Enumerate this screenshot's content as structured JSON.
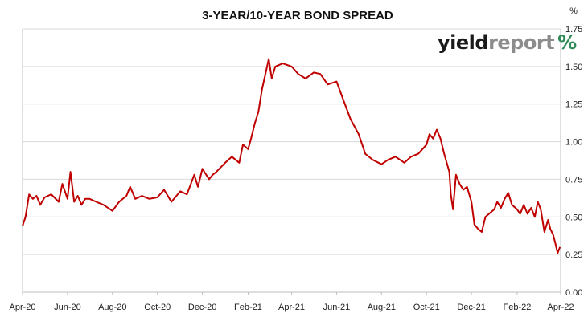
{
  "chart_data": {
    "type": "line",
    "title": "3-YEAR/10-YEAR BOND SPREAD",
    "y_unit": "%",
    "ylim": [
      0,
      1.75
    ],
    "y_ticks": [
      "0.00",
      "0.25",
      "0.50",
      "0.75",
      "1.00",
      "1.25",
      "1.50",
      "1.75"
    ],
    "x_ticks": [
      "Apr-20",
      "Jun-20",
      "Aug-20",
      "Oct-20",
      "Dec-20",
      "Feb-21",
      "Apr-21",
      "Jun-21",
      "Aug-21",
      "Oct-21",
      "Dec-21",
      "Feb-22",
      "Apr-22"
    ],
    "grid": "horizontal",
    "legend": "none",
    "colors": {
      "line": "#c00000"
    },
    "logo": {
      "part1": "yield",
      "part2": "report",
      "part3": "%",
      "color1": "#1a1a1a",
      "color2": "#8c8c8c",
      "color3": "#2e8b57"
    },
    "series": [
      {
        "x": [
          "2020-04-01",
          "2020-04-05",
          "2020-04-10",
          "2020-04-15",
          "2020-04-20",
          "2020-04-25",
          "2020-05-01",
          "2020-05-10",
          "2020-05-20",
          "2020-05-25",
          "2020-06-01",
          "2020-06-05",
          "2020-06-10",
          "2020-06-15",
          "2020-06-20",
          "2020-06-25",
          "2020-07-01",
          "2020-07-10",
          "2020-07-20",
          "2020-08-01",
          "2020-08-10",
          "2020-08-20",
          "2020-08-25",
          "2020-09-01",
          "2020-09-10",
          "2020-09-20",
          "2020-10-01",
          "2020-10-10",
          "2020-10-20",
          "2020-11-01",
          "2020-11-10",
          "2020-11-20",
          "2020-11-25",
          "2020-12-01",
          "2020-12-10",
          "2020-12-15",
          "2020-12-20",
          "2021-01-01",
          "2021-01-10",
          "2021-01-20",
          "2021-01-25",
          "2021-02-01",
          "2021-02-05",
          "2021-02-10",
          "2021-02-15",
          "2021-02-20",
          "2021-02-25",
          "2021-03-01",
          "2021-03-05",
          "2021-03-10",
          "2021-03-20",
          "2021-04-01",
          "2021-04-10",
          "2021-04-20",
          "2021-05-01",
          "2021-05-10",
          "2021-05-20",
          "2021-06-01",
          "2021-06-10",
          "2021-06-20",
          "2021-07-01",
          "2021-07-10",
          "2021-07-20",
          "2021-08-01",
          "2021-08-10",
          "2021-08-20",
          "2021-09-01",
          "2021-09-10",
          "2021-09-20",
          "2021-10-01",
          "2021-10-05",
          "2021-10-10",
          "2021-10-15",
          "2021-10-20",
          "2021-10-25",
          "2021-11-01",
          "2021-11-03",
          "2021-11-06",
          "2021-11-10",
          "2021-11-15",
          "2021-11-20",
          "2021-11-25",
          "2021-12-01",
          "2021-12-05",
          "2021-12-10",
          "2021-12-15",
          "2021-12-20",
          "2022-01-01",
          "2022-01-05",
          "2022-01-10",
          "2022-01-15",
          "2022-01-20",
          "2022-01-25",
          "2022-02-01",
          "2022-02-05",
          "2022-02-10",
          "2022-02-15",
          "2022-02-20",
          "2022-02-25",
          "2022-03-01",
          "2022-03-05",
          "2022-03-10",
          "2022-03-15",
          "2022-03-18",
          "2022-03-22",
          "2022-03-25",
          "2022-03-28",
          "2022-03-31"
        ],
        "y": [
          0.44,
          0.5,
          0.65,
          0.62,
          0.64,
          0.58,
          0.63,
          0.65,
          0.6,
          0.72,
          0.62,
          0.8,
          0.6,
          0.64,
          0.58,
          0.62,
          0.62,
          0.6,
          0.58,
          0.54,
          0.6,
          0.64,
          0.7,
          0.62,
          0.64,
          0.62,
          0.63,
          0.68,
          0.6,
          0.67,
          0.65,
          0.78,
          0.7,
          0.82,
          0.75,
          0.78,
          0.8,
          0.86,
          0.9,
          0.86,
          0.98,
          0.95,
          1.02,
          1.12,
          1.2,
          1.35,
          1.46,
          1.55,
          1.42,
          1.5,
          1.52,
          1.5,
          1.45,
          1.42,
          1.46,
          1.45,
          1.38,
          1.4,
          1.28,
          1.15,
          1.05,
          0.92,
          0.88,
          0.85,
          0.88,
          0.9,
          0.86,
          0.9,
          0.92,
          0.98,
          1.05,
          1.02,
          1.08,
          1.02,
          0.92,
          0.8,
          0.65,
          0.55,
          0.78,
          0.72,
          0.68,
          0.7,
          0.6,
          0.45,
          0.42,
          0.4,
          0.5,
          0.55,
          0.6,
          0.56,
          0.62,
          0.66,
          0.58,
          0.55,
          0.52,
          0.58,
          0.52,
          0.56,
          0.5,
          0.6,
          0.55,
          0.4,
          0.48,
          0.42,
          0.38,
          0.32,
          0.26,
          0.3
        ]
      }
    ]
  }
}
